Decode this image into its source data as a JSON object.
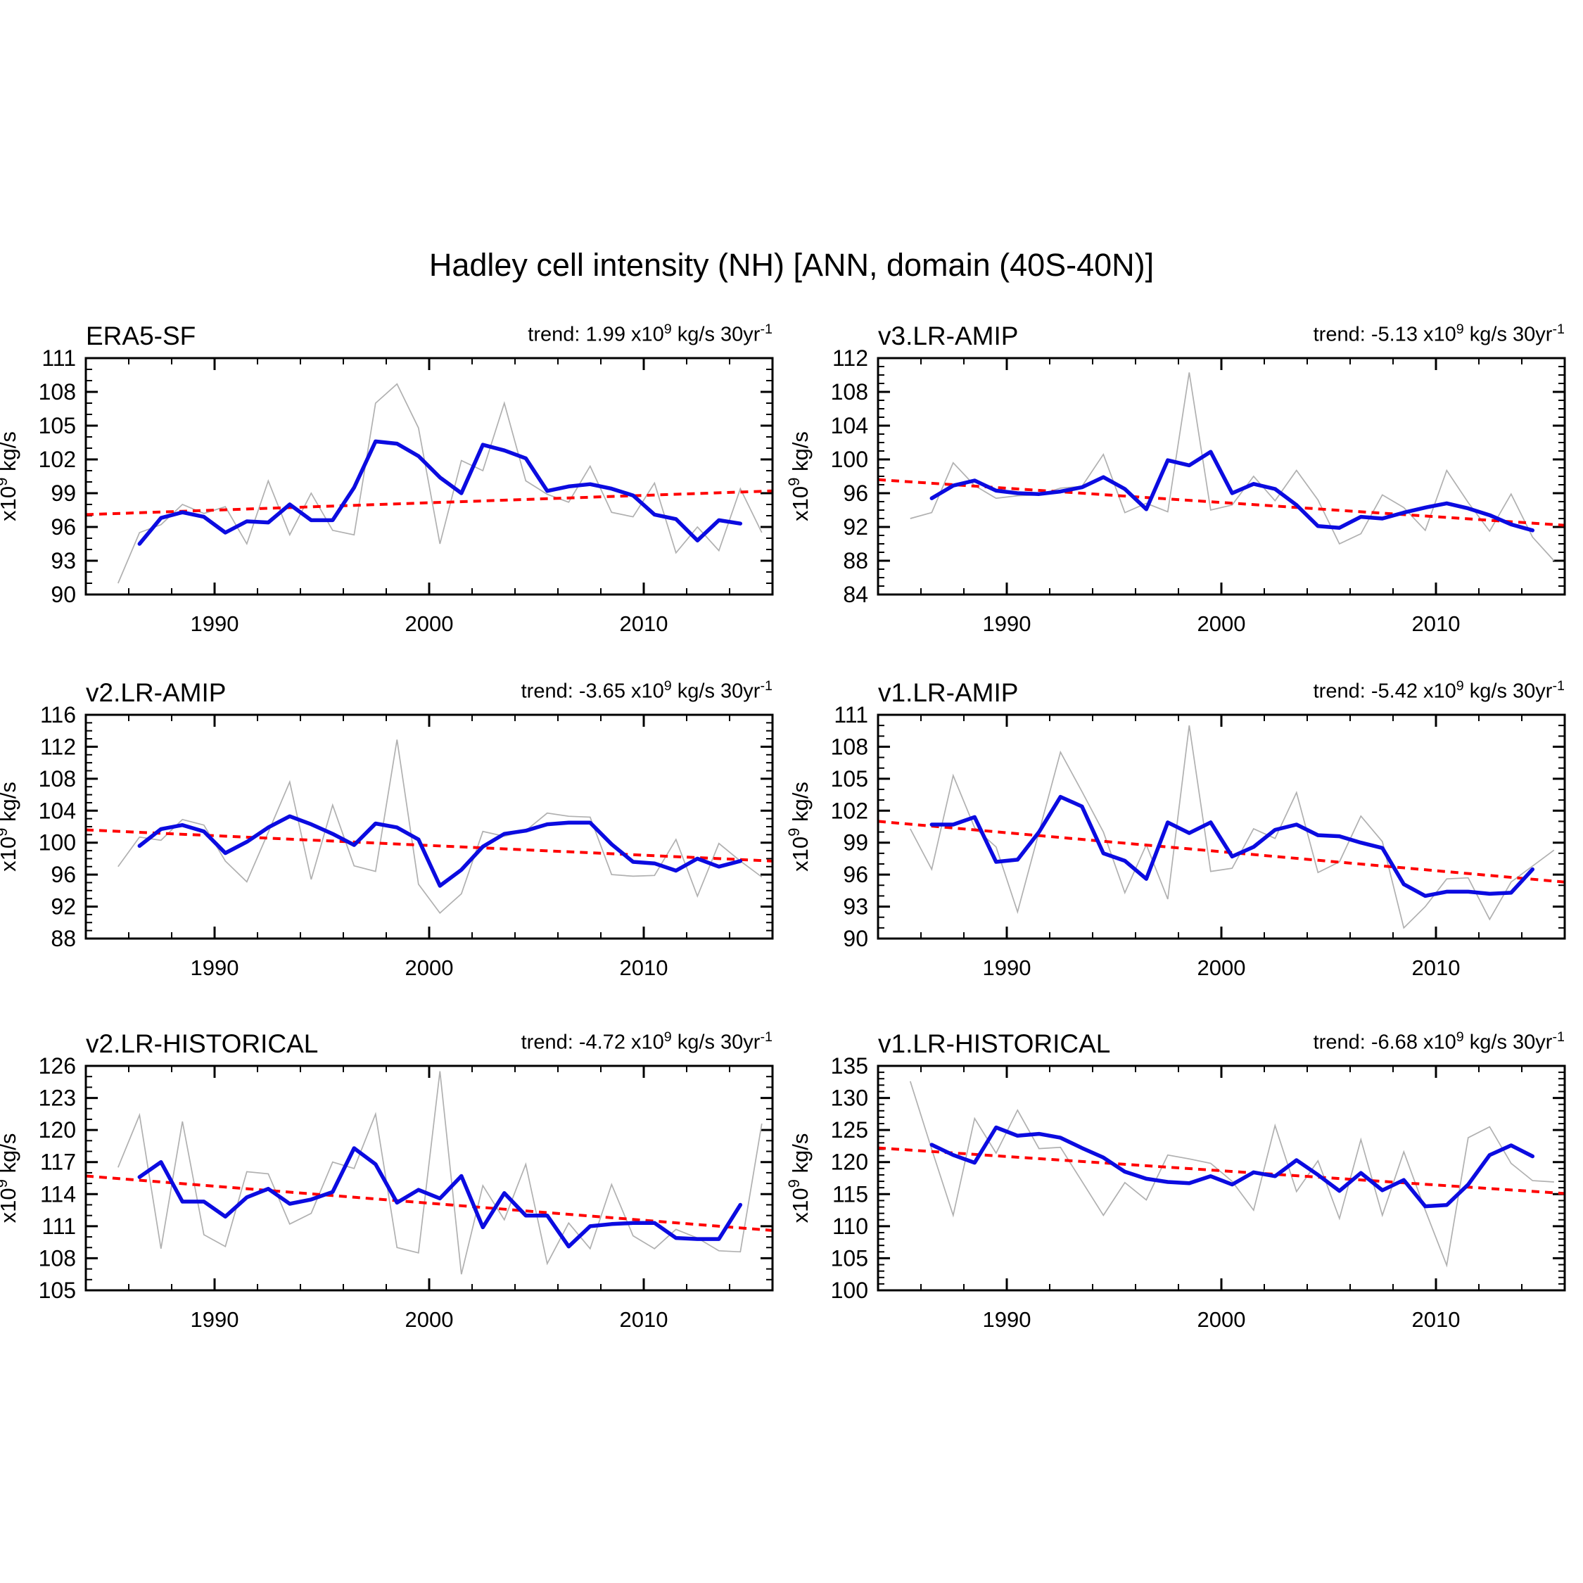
{
  "figure_title": "Hadley cell intensity (NH) [ANN, domain (40S-40N)]",
  "y_axis_label_parts": {
    "base": "x10",
    "exp": "9",
    "rest": " kg/s"
  },
  "colors": {
    "annual_line": "#b0b0b0",
    "smoothed_line": "#0b0be0",
    "trend_line": "#ff0000",
    "axis": "#000000"
  },
  "x_axis": {
    "min": 1984,
    "max": 2016,
    "major_ticks": [
      1990,
      2000,
      2010
    ],
    "minor_step": 2,
    "point_offset": 0.5
  },
  "chart_data": [
    {
      "type": "line",
      "title": "ERA5-SF",
      "trend_parts": {
        "label": "trend: ",
        "value": "1.99",
        "x10": " x10",
        "exp": "9",
        "units": " kg/s 30yr",
        "exp2": "-1"
      },
      "ylabel": "x10^9 kg/s",
      "xlim": [
        1984,
        2016
      ],
      "ylim": [
        90,
        111
      ],
      "ytick_step": 3,
      "x_major_ticks": [
        1990,
        2000,
        2010
      ],
      "annual_start_year": 1985,
      "annual": [
        91.0,
        95.5,
        96.2,
        98.0,
        97.2,
        97.8,
        94.5,
        100.1,
        95.3,
        99.0,
        95.7,
        95.3,
        107.0,
        108.7,
        104.8,
        94.5,
        101.9,
        101.0,
        107.0,
        100.1,
        98.9,
        98.2,
        101.4,
        97.3,
        96.9,
        99.9,
        93.7,
        96.0,
        93.9,
        99.4,
        95.5
      ],
      "smoothed_start_year": 1986,
      "smoothed": [
        94.5,
        96.8,
        97.3,
        96.9,
        95.5,
        96.5,
        96.4,
        98.0,
        96.6,
        96.6,
        99.5,
        103.6,
        103.4,
        102.3,
        100.4,
        99.0,
        103.3,
        102.8,
        102.1,
        99.2,
        99.6,
        99.8,
        99.4,
        98.8,
        97.1,
        96.7,
        94.8,
        96.6,
        96.3
      ],
      "trend_endpoints": [
        97.1,
        99.2
      ]
    },
    {
      "type": "line",
      "title": "v3.LR-AMIP",
      "trend_parts": {
        "label": "trend: ",
        "value": "-5.13",
        "x10": " x10",
        "exp": "9",
        "units": " kg/s 30yr",
        "exp2": "-1"
      },
      "ylabel": "x10^9 kg/s",
      "xlim": [
        1984,
        2016
      ],
      "ylim": [
        84,
        112
      ],
      "ytick_step": 4,
      "x_major_ticks": [
        1990,
        2000,
        2010
      ],
      "annual_start_year": 1985,
      "annual": [
        93.0,
        93.7,
        99.6,
        96.9,
        95.4,
        95.7,
        95.8,
        96.6,
        96.8,
        100.6,
        93.7,
        94.8,
        93.8,
        110.3,
        94.0,
        94.6,
        98.0,
        95.1,
        98.7,
        95.2,
        90.0,
        91.2,
        95.8,
        94.3,
        91.6,
        98.7,
        94.9,
        91.5,
        95.9,
        90.8,
        88.0
      ],
      "smoothed_start_year": 1986,
      "smoothed": [
        95.4,
        96.9,
        97.5,
        96.3,
        96.0,
        95.9,
        96.2,
        96.7,
        97.9,
        96.5,
        94.1,
        99.9,
        99.3,
        100.9,
        96.0,
        97.1,
        96.5,
        94.6,
        92.1,
        91.9,
        93.2,
        93.0,
        93.7,
        94.3,
        94.8,
        94.2,
        93.4,
        92.3,
        91.6
      ],
      "trend_endpoints": [
        97.6,
        92.2
      ]
    },
    {
      "type": "line",
      "title": "v2.LR-AMIP",
      "trend_parts": {
        "label": "trend: ",
        "value": "-3.65",
        "x10": " x10",
        "exp": "9",
        "units": " kg/s 30yr",
        "exp2": "-1"
      },
      "ylabel": "x10^9 kg/s",
      "xlim": [
        1984,
        2016
      ],
      "ylim": [
        88,
        116
      ],
      "ytick_step": 4,
      "x_major_ticks": [
        1990,
        2000,
        2010
      ],
      "annual_start_year": 1985,
      "annual": [
        97.0,
        100.7,
        100.3,
        102.9,
        102.2,
        97.7,
        95.1,
        101.3,
        107.6,
        95.4,
        104.7,
        97.1,
        96.4,
        112.9,
        94.8,
        91.2,
        93.6,
        101.4,
        100.8,
        101.5,
        103.7,
        103.3,
        103.2,
        96.0,
        95.8,
        95.9,
        100.4,
        93.3,
        99.9,
        97.7,
        95.7
      ],
      "smoothed_start_year": 1986,
      "smoothed": [
        99.6,
        101.7,
        102.2,
        101.4,
        98.7,
        100.1,
        101.9,
        103.3,
        102.3,
        101.1,
        99.7,
        102.4,
        101.9,
        100.4,
        94.6,
        96.6,
        99.5,
        101.1,
        101.5,
        102.3,
        102.5,
        102.5,
        99.8,
        97.6,
        97.4,
        96.5,
        98.0,
        97.0,
        97.7
      ],
      "trend_endpoints": [
        101.6,
        97.7
      ]
    },
    {
      "type": "line",
      "title": "v1.LR-AMIP",
      "trend_parts": {
        "label": "trend: ",
        "value": "-5.42",
        "x10": " x10",
        "exp": "9",
        "units": " kg/s 30yr",
        "exp2": "-1"
      },
      "ylabel": "x10^9 kg/s",
      "xlim": [
        1984,
        2016
      ],
      "ylim": [
        90,
        111
      ],
      "ytick_step": 3,
      "x_major_ticks": [
        1990,
        2000,
        2010
      ],
      "annual_start_year": 1985,
      "annual": [
        100.3,
        96.5,
        105.3,
        100.4,
        98.6,
        92.5,
        100.0,
        107.5,
        103.8,
        100.0,
        94.3,
        98.8,
        93.7,
        110.0,
        96.3,
        96.6,
        100.3,
        99.4,
        103.7,
        96.2,
        97.2,
        101.5,
        99.1,
        91.0,
        93.0,
        95.6,
        95.7,
        91.8,
        95.3,
        96.8,
        98.3
      ],
      "smoothed_start_year": 1986,
      "smoothed": [
        100.7,
        100.7,
        101.4,
        97.2,
        97.4,
        100.0,
        103.3,
        102.4,
        98.0,
        97.3,
        95.6,
        100.9,
        99.9,
        100.9,
        97.7,
        98.6,
        100.2,
        100.7,
        99.7,
        99.6,
        99.0,
        98.5,
        95.1,
        94.0,
        94.4,
        94.4,
        94.2,
        94.3,
        96.5
      ],
      "trend_endpoints": [
        101.0,
        95.3
      ]
    },
    {
      "type": "line",
      "title": "v2.LR-HISTORICAL",
      "trend_parts": {
        "label": "trend: ",
        "value": "-4.72",
        "x10": " x10",
        "exp": "9",
        "units": " kg/s 30yr",
        "exp2": "-1"
      },
      "ylabel": "x10^9 kg/s",
      "xlim": [
        1984,
        2016
      ],
      "ylim": [
        105,
        126
      ],
      "ytick_step": 3,
      "x_major_ticks": [
        1990,
        2000,
        2010
      ],
      "annual_start_year": 1985,
      "annual": [
        116.5,
        121.4,
        108.9,
        120.8,
        110.2,
        109.1,
        116.1,
        115.9,
        111.2,
        112.2,
        117.0,
        116.4,
        121.5,
        109.0,
        108.5,
        125.5,
        106.5,
        114.8,
        111.6,
        116.8,
        107.5,
        111.3,
        108.9,
        114.9,
        110.1,
        108.9,
        110.7,
        109.9,
        108.7,
        108.6,
        120.6
      ],
      "smoothed_start_year": 1986,
      "smoothed": [
        115.6,
        117.0,
        113.3,
        113.3,
        111.9,
        113.7,
        114.5,
        113.1,
        113.5,
        114.2,
        118.3,
        116.8,
        113.2,
        114.4,
        113.6,
        115.7,
        110.9,
        114.1,
        112.0,
        112.0,
        109.1,
        111.0,
        111.2,
        111.3,
        111.3,
        109.9,
        109.8,
        109.8,
        113.0
      ],
      "trend_endpoints": [
        115.7,
        110.6
      ]
    },
    {
      "type": "line",
      "title": "v1.LR-HISTORICAL",
      "trend_parts": {
        "label": "trend: ",
        "value": "-6.68",
        "x10": " x10",
        "exp": "9",
        "units": " kg/s 30yr",
        "exp2": "-1"
      },
      "ylabel": "x10^9 kg/s",
      "xlim": [
        1984,
        2016
      ],
      "ylim": [
        100,
        135
      ],
      "ytick_step": 5,
      "x_major_ticks": [
        1990,
        2000,
        2010
      ],
      "annual_start_year": 1985,
      "annual": [
        132.6,
        122.0,
        111.7,
        126.8,
        121.4,
        128.1,
        122.1,
        122.3,
        117.0,
        111.7,
        116.8,
        114.1,
        121.1,
        120.5,
        119.8,
        117.0,
        112.5,
        125.7,
        115.4,
        120.2,
        111.2,
        123.5,
        111.7,
        121.6,
        112.5,
        103.9,
        123.8,
        125.5,
        119.8,
        117.1,
        116.9
      ],
      "smoothed_start_year": 1986,
      "smoothed": [
        122.7,
        121.1,
        119.9,
        125.4,
        124.1,
        124.4,
        123.8,
        122.2,
        120.7,
        118.5,
        117.4,
        116.9,
        116.7,
        117.8,
        116.5,
        118.4,
        117.8,
        120.3,
        118.0,
        115.5,
        118.3,
        115.6,
        117.2,
        113.1,
        113.3,
        116.5,
        121.1,
        122.6,
        120.9
      ],
      "trend_endpoints": [
        122.2,
        115.1
      ]
    }
  ]
}
